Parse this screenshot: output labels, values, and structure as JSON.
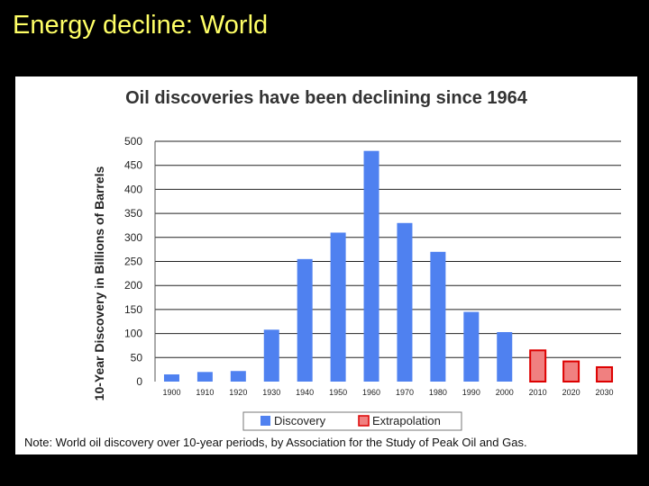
{
  "slide": {
    "title": "Energy decline: World",
    "title_color": "#ffff66",
    "background": "#000000"
  },
  "note": "Note: World oil discovery over 10-year periods, by Association for the Study of Peak Oil and Gas.",
  "chart_data": {
    "type": "bar",
    "title": "Oil discoveries have been declining since 1964",
    "xlabel": "",
    "ylabel": "10-Year Discovery in Billions of Barrels",
    "ylim": [
      0,
      500
    ],
    "yticks": [
      0,
      50,
      100,
      150,
      200,
      250,
      300,
      350,
      400,
      450,
      500
    ],
    "grid": true,
    "legend_position": "bottom",
    "categories": [
      "1900",
      "1910",
      "1920",
      "1930",
      "1940",
      "1950",
      "1960",
      "1970",
      "1980",
      "1990",
      "2000",
      "2010",
      "2020",
      "2030"
    ],
    "series": [
      {
        "name": "Discovery",
        "color": "#4f81f0",
        "values": [
          15,
          20,
          22,
          108,
          255,
          310,
          480,
          330,
          270,
          145,
          103,
          null,
          null,
          null
        ]
      },
      {
        "name": "Extrapolation",
        "color": "#f08080",
        "border_color": "#dd0000",
        "values": [
          null,
          null,
          null,
          null,
          null,
          null,
          null,
          null,
          null,
          null,
          null,
          65,
          42,
          30
        ]
      }
    ]
  }
}
